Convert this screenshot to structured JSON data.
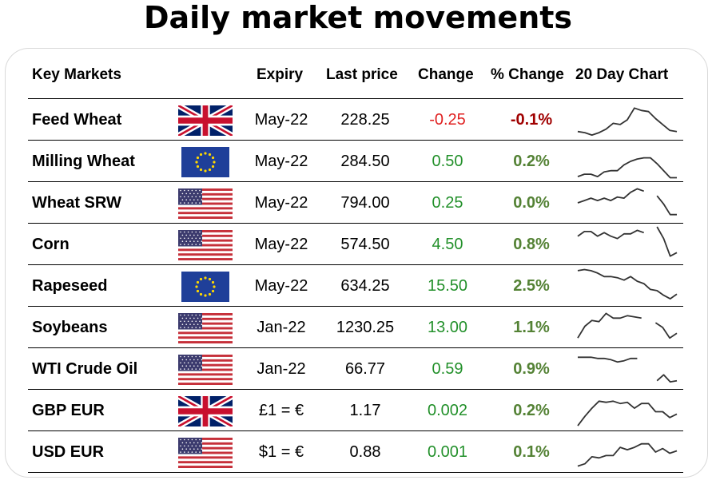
{
  "title": "Daily market movements",
  "columns": {
    "market": "Key Markets",
    "expiry": "Expiry",
    "last": "Last price",
    "change": "Change",
    "pct": "% Change",
    "chart": "20 Day Chart"
  },
  "colors": {
    "negative": "#e02020",
    "negative_pct": "#a00000",
    "positive": "#22902a",
    "positive_pct": "#548235"
  },
  "rows": [
    {
      "name": "Feed Wheat",
      "flag": "uk-flag-icon",
      "expiry": "May-22",
      "last": "228.25",
      "change": "-0.25",
      "pct": "-0.1%",
      "dir": "neg",
      "spark": [
        5,
        4,
        2,
        4,
        7,
        12,
        11,
        15,
        25,
        23,
        22,
        16,
        11,
        6,
        5
      ]
    },
    {
      "name": "Milling Wheat",
      "flag": "eu-flag-icon",
      "expiry": "May-22",
      "last": "284.50",
      "change": "0.50",
      "pct": "0.2%",
      "dir": "pos",
      "spark": [
        2,
        4,
        4,
        2,
        6,
        7,
        7,
        12,
        15,
        17,
        18,
        18,
        13,
        7,
        1,
        1
      ]
    },
    {
      "name": "Wheat SRW",
      "flag": "us-flag-icon",
      "expiry": "May-22",
      "last": "794.00",
      "change": "0.25",
      "pct": "0.0%",
      "dir": "pos",
      "spark": [
        15,
        17,
        19,
        17,
        19,
        17,
        20,
        19,
        24,
        27,
        25,
        null,
        21,
        14,
        5,
        5
      ]
    },
    {
      "name": "Corn",
      "flag": "us-flag-icon",
      "expiry": "May-22",
      "last": "574.50",
      "change": "4.50",
      "pct": "0.8%",
      "dir": "pos",
      "spark": [
        22,
        26,
        26,
        22,
        25,
        22,
        20,
        24,
        24,
        27,
        25,
        null,
        30,
        20,
        5,
        8
      ]
    },
    {
      "name": "Rapeseed",
      "flag": "eu-flag-icon",
      "expiry": "May-22",
      "last": "634.25",
      "change": "15.50",
      "pct": "2.5%",
      "dir": "pos",
      "spark": [
        28,
        29,
        28,
        26,
        23,
        23,
        22,
        20,
        23,
        19,
        17,
        12,
        11,
        7,
        4,
        8
      ]
    },
    {
      "name": "Soybeans",
      "flag": "us-flag-icon",
      "expiry": "Jan-22",
      "last": "1230.25",
      "change": "13.00",
      "pct": "1.1%",
      "dir": "pos",
      "spark": [
        6,
        16,
        21,
        20,
        27,
        23,
        23,
        25,
        24,
        23,
        null,
        19,
        15,
        6,
        10
      ]
    },
    {
      "name": "WTI Crude Oil",
      "flag": "us-flag-icon",
      "expiry": "Jan-22",
      "last": "66.77",
      "change": "0.59",
      "pct": "0.9%",
      "dir": "pos",
      "spark": [
        25,
        25,
        25,
        24,
        24,
        23,
        21,
        22,
        24,
        24,
        null,
        null,
        5,
        10,
        4,
        5
      ]
    },
    {
      "name": "GBP EUR",
      "flag": "uk-flag-icon",
      "expiry": "£1 = €",
      "last": "1.17",
      "change": "0.002",
      "pct": "0.2%",
      "dir": "pos",
      "spark": [
        2,
        10,
        17,
        23,
        22,
        23,
        21,
        22,
        17,
        21,
        21,
        14,
        14,
        9,
        12
      ]
    },
    {
      "name": "USD EUR",
      "flag": "us-flag-icon",
      "expiry": "$1 = €",
      "last": "0.88",
      "change": "0.001",
      "pct": "0.1%",
      "dir": "pos",
      "spark": [
        3,
        5,
        11,
        10,
        12,
        12,
        19,
        17,
        19,
        22,
        22,
        15,
        18,
        14,
        16
      ]
    }
  ]
}
